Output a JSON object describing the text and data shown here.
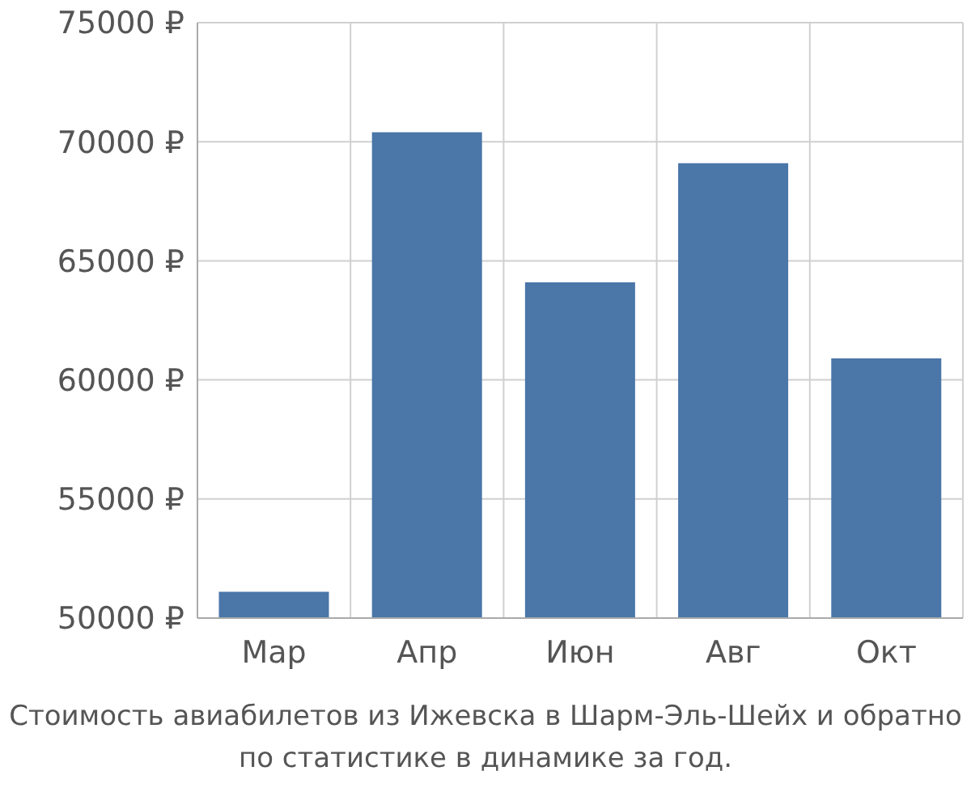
{
  "chart_data": {
    "type": "bar",
    "title": "Стоимость авиабилетов из Ижевска в Шарм-Эль-Шейх и обратно",
    "subtitle": "по статистике в динамике за год.",
    "categories": [
      "Мар",
      "Апр",
      "Июн",
      "Авг",
      "Окт"
    ],
    "values": [
      51100,
      70400,
      64100,
      69100,
      60900
    ],
    "color": "#4a76a8",
    "ylim": [
      50000,
      75000
    ],
    "yticks": [
      {
        "value": 50000,
        "label": "50000 ₽"
      },
      {
        "value": 55000,
        "label": "55000 ₽"
      },
      {
        "value": 60000,
        "label": "60000 ₽"
      },
      {
        "value": 65000,
        "label": "65000 ₽"
      },
      {
        "value": 70000,
        "label": "70000 ₽"
      },
      {
        "value": 75000,
        "label": "75000 ₽"
      }
    ],
    "grid": true
  }
}
